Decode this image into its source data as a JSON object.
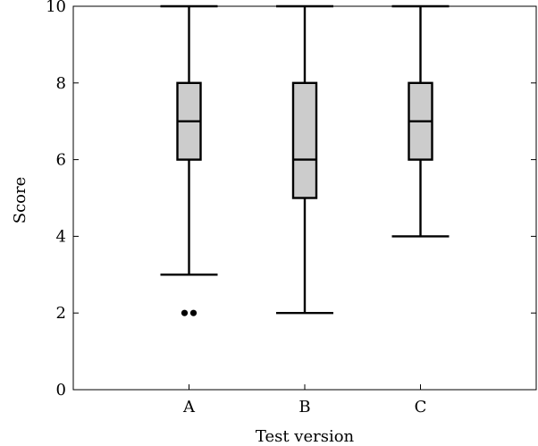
{
  "chart_data": {
    "type": "box",
    "xlabel": "Test version",
    "ylabel": "Score",
    "ylim": [
      0,
      10
    ],
    "yticks": [
      0,
      2,
      4,
      6,
      8,
      10
    ],
    "categories": [
      "A",
      "B",
      "C"
    ],
    "boxes": [
      {
        "category": "A",
        "whisker_low": 3,
        "q1": 6,
        "median": 7,
        "q3": 8,
        "whisker_high": 10,
        "outliers": [
          2,
          2
        ]
      },
      {
        "category": "B",
        "whisker_low": 2,
        "q1": 5,
        "median": 6,
        "q3": 8,
        "whisker_high": 10,
        "outliers": []
      },
      {
        "category": "C",
        "whisker_low": 4,
        "q1": 6,
        "median": 7,
        "q3": 8,
        "whisker_high": 10,
        "outliers": []
      }
    ],
    "box_fill": "#cccccc",
    "line_color": "#000000",
    "grid": false
  }
}
